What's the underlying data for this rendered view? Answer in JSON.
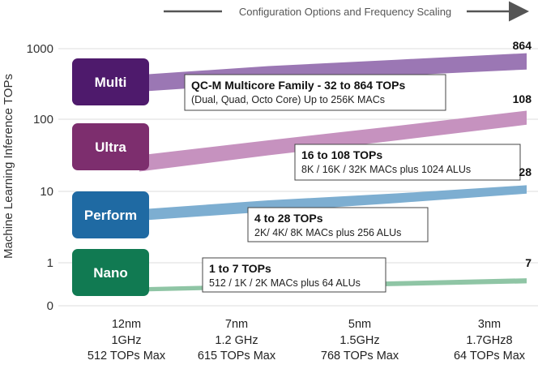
{
  "chart_data": {
    "type": "area",
    "top_label": "Configuration Options and Frequency Scaling",
    "ylabel": "Machine Learning Inference TOPs",
    "y_scale": "log",
    "yticks": [
      "1000",
      "100",
      "10",
      "1",
      "0"
    ],
    "categories": [
      [
        "12nm",
        "1GHz",
        "512 TOPs Max"
      ],
      [
        "7nm",
        "1.2 GHz",
        "615 TOPs Max"
      ],
      [
        "5nm",
        "1.5GHz",
        "768 TOPs Max"
      ],
      [
        "3nm",
        "1.7GHz8",
        "64 TOPs Max"
      ]
    ],
    "series": [
      {
        "name": "Multi",
        "color": "#9b77b4",
        "button_color": "#4e1a6c",
        "end_label": "864",
        "lower": [
          250,
          330,
          420,
          510
        ],
        "upper": [
          430,
          570,
          700,
          864
        ],
        "annotation": [
          "QC-M Multicore Family - 32 to 864 TOPs",
          "(Dual, Quad, Octo Core) Up to 256K MACs"
        ]
      },
      {
        "name": "Ultra",
        "color": "#c692bf",
        "button_color": "#7d2e6e",
        "end_label": "108",
        "lower": [
          19,
          32,
          52,
          86
        ],
        "upper": [
          32,
          52,
          83,
          135
        ],
        "annotation": [
          "16 to 108 TOPs",
          "8K / 16K / 32K MACs plus 1024 ALUs"
        ]
      },
      {
        "name": "Perform",
        "color": "#7daed1",
        "button_color": "#1f6aa3",
        "end_label": "28",
        "lower": [
          3.9,
          5.2,
          6.9,
          9.3
        ],
        "upper": [
          5.6,
          7.5,
          9.4,
          12.2
        ],
        "annotation": [
          "4 to 28 TOPs",
          "2K/ 4K/ 8K MACs plus 256 ALUs"
        ]
      },
      {
        "name": "Nano",
        "color": "#8fc5a5",
        "button_color": "#117a52",
        "end_label": "7",
        "lower": [
          0.33,
          0.4,
          0.46,
          0.52
        ],
        "upper": [
          0.43,
          0.5,
          0.57,
          0.64
        ],
        "annotation": [
          "1 to 7 TOPs",
          "512 / 1K / 2K MACs plus 64 ALUs"
        ]
      }
    ]
  }
}
